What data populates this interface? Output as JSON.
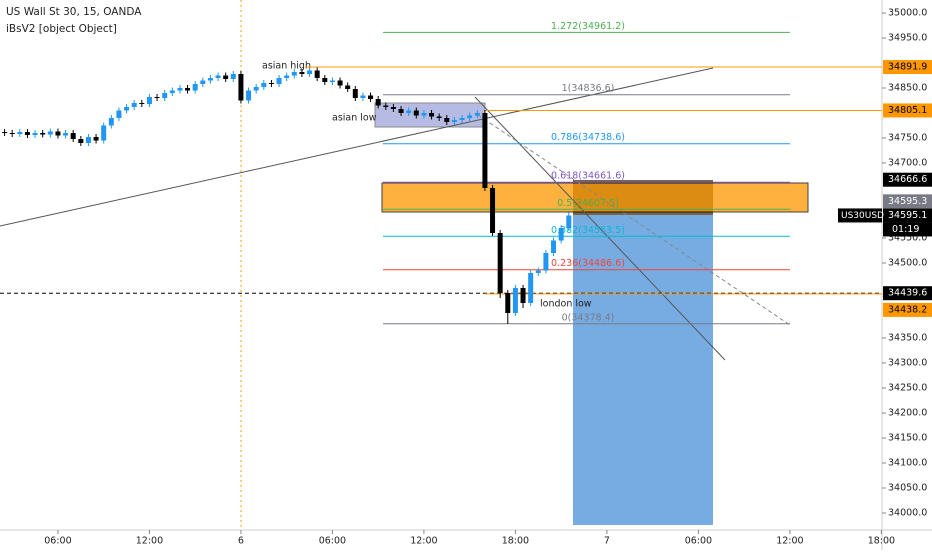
{
  "chart_data": {
    "type": "candlestick",
    "title": "US Wall St 30, 15, OANDA",
    "subtitle": "iBsV2 [object Object]",
    "x": [
      -15.5,
      -15,
      -14.5,
      -14,
      -13.5,
      -13,
      -12.5,
      -12,
      -11.5,
      -11,
      -10.5,
      -10,
      -9.5,
      -9,
      -8.5,
      -8,
      -7.5,
      -7,
      -6.5,
      -6,
      -5.5,
      -5,
      -4.5,
      -4,
      -3.5,
      -3,
      -2.5,
      -2,
      -1.5,
      -1,
      -0.5,
      0,
      0.5,
      1,
      1.5,
      2,
      2.5,
      3,
      3.5,
      4,
      4.5,
      5,
      5.5,
      6,
      6.5,
      7,
      7.5,
      8,
      8.5,
      9,
      9.5,
      10,
      10.5,
      11,
      11.5,
      12,
      12.5,
      13,
      13.5,
      14,
      14.5,
      15,
      15.5,
      16,
      16.5,
      17,
      17.5,
      18,
      18.5,
      19,
      19.5,
      20,
      20.5,
      21,
      21.5
    ],
    "open": [
      34762,
      34760,
      34758,
      34762,
      34756,
      34760,
      34757,
      34763,
      34755,
      34760,
      34748,
      34740,
      34752,
      34745,
      34775,
      34790,
      34805,
      34812,
      34820,
      34818,
      34832,
      34830,
      34840,
      34845,
      34850,
      34845,
      34858,
      34865,
      34870,
      34875,
      34868,
      34878,
      34825,
      34845,
      34852,
      34860,
      34858,
      34870,
      34875,
      34882,
      34878,
      34885,
      34870,
      34862,
      34865,
      34855,
      34848,
      34830,
      34835,
      34828,
      34815,
      34812,
      34808,
      34800,
      34805,
      34795,
      34800,
      34793,
      34790,
      34782,
      34786,
      34790,
      34795,
      34800,
      34650,
      34560,
      34440,
      34400,
      34450,
      34420,
      34480,
      34485,
      34520,
      34545,
      34570
    ],
    "high": [
      34768,
      34766,
      34768,
      34768,
      34766,
      34766,
      34769,
      34769,
      34766,
      34766,
      34754,
      34758,
      34758,
      34781,
      34796,
      34811,
      34818,
      34826,
      34826,
      34838,
      34838,
      34846,
      34851,
      34856,
      34856,
      34864,
      34871,
      34876,
      34881,
      34881,
      34884,
      34884,
      34851,
      34858,
      34866,
      34866,
      34876,
      34881,
      34888,
      34888,
      34891,
      34891,
      34876,
      34871,
      34871,
      34861,
      34854,
      34841,
      34841,
      34834,
      34821,
      34818,
      34814,
      34811,
      34811,
      34806,
      34806,
      34799,
      34796,
      34792,
      34796,
      34801,
      34806,
      34806,
      34656,
      34566,
      34446,
      34456,
      34456,
      34486,
      34491,
      34526,
      34551,
      34576,
      34601
    ],
    "low": [
      34754,
      34752,
      34752,
      34750,
      34750,
      34751,
      34751,
      34749,
      34749,
      34742,
      34734,
      34734,
      34739,
      34739,
      34769,
      34784,
      34799,
      34806,
      34812,
      34812,
      34824,
      34824,
      34834,
      34839,
      34839,
      34839,
      34852,
      34859,
      34864,
      34862,
      34862,
      34819,
      34819,
      34839,
      34846,
      34852,
      34852,
      34864,
      34869,
      34872,
      34872,
      34864,
      34856,
      34856,
      34849,
      34842,
      34824,
      34824,
      34822,
      34809,
      34806,
      34802,
      34794,
      34794,
      34789,
      34789,
      34787,
      34784,
      34776,
      34776,
      34780,
      34784,
      34789,
      34644,
      34554,
      34430,
      34378,
      34394,
      34410,
      34414,
      34474,
      34479,
      34514,
      34539,
      34564
    ],
    "close": [
      34760,
      34758,
      34762,
      34756,
      34760,
      34757,
      34763,
      34755,
      34760,
      34748,
      34740,
      34752,
      34745,
      34775,
      34790,
      34805,
      34812,
      34820,
      34818,
      34832,
      34830,
      34840,
      34845,
      34850,
      34845,
      34858,
      34865,
      34870,
      34875,
      34868,
      34878,
      34825,
      34845,
      34852,
      34860,
      34858,
      34870,
      34875,
      34882,
      34878,
      34885,
      34870,
      34862,
      34865,
      34855,
      34848,
      34830,
      34835,
      34828,
      34815,
      34812,
      34808,
      34800,
      34805,
      34795,
      34800,
      34793,
      34790,
      34782,
      34786,
      34790,
      34795,
      34800,
      34650,
      34560,
      34440,
      34400,
      34450,
      34420,
      34480,
      34485,
      34520,
      34545,
      34570,
      34595
    ],
    "up_color": "#2196f3",
    "down_color": "#000000",
    "xlim": [
      -15.8,
      42.04
    ],
    "ylim": [
      33966,
      35026
    ],
    "xticks": [
      {
        "value": -12,
        "label": "06:00"
      },
      {
        "value": -6,
        "label": "12:00"
      },
      {
        "value": 0,
        "label": "6"
      },
      {
        "value": 6,
        "label": "06:00"
      },
      {
        "value": 12,
        "label": "12:00"
      },
      {
        "value": 18,
        "label": "18:00"
      },
      {
        "value": 24,
        "label": "7"
      },
      {
        "value": 30,
        "label": "06:00"
      },
      {
        "value": 36,
        "label": "12:00"
      },
      {
        "value": 42,
        "label": "18:00"
      }
    ],
    "yticks": [
      {
        "value": 35000,
        "label": "35000.0"
      },
      {
        "value": 34950,
        "label": "34950.0"
      },
      {
        "value": 34850,
        "label": "34850.0"
      },
      {
        "value": 34750,
        "label": "34750.0"
      },
      {
        "value": 34700,
        "label": "34700.0"
      },
      {
        "value": 34550,
        "label": "34550.0"
      },
      {
        "value": 34500,
        "label": "34500.0"
      },
      {
        "value": 34350,
        "label": "34350.0"
      },
      {
        "value": 34300,
        "label": "34300.0"
      },
      {
        "value": 34250,
        "label": "34250.0"
      },
      {
        "value": 34200,
        "label": "34200.0"
      },
      {
        "value": 34150,
        "label": "34150.0"
      },
      {
        "value": 34100,
        "label": "34100.0"
      },
      {
        "value": 34050,
        "label": "34050.0"
      },
      {
        "value": 34000,
        "label": "34000.0"
      }
    ],
    "fib_levels": [
      {
        "value": 34961.2,
        "label": "1.272(34961.2)",
        "color": "#4caf50"
      },
      {
        "value": 34836.6,
        "label": "1(34836.6)",
        "color": "#787b86"
      },
      {
        "value": 34738.6,
        "label": "0.786(34738.6)",
        "color": "#2196f3"
      },
      {
        "value": 34661.6,
        "label": "0.618(34661.6)",
        "color": "#7e57c2"
      },
      {
        "value": 34607.5,
        "label": "0.5(34607.5)",
        "color": "#4caf50"
      },
      {
        "value": 34553.5,
        "label": "0.382(34553.5)",
        "color": "#00bcd4"
      },
      {
        "value": 34486.6,
        "label": "0.236(34486.6)",
        "color": "#f44336"
      },
      {
        "value": 34378.4,
        "label": "0(34378.4)",
        "color": "#787b86"
      }
    ],
    "price_labels": [
      {
        "value": 34891.9,
        "color": "#ff9800"
      },
      {
        "value": 34805.1,
        "color": "#ff9800"
      },
      {
        "value": 34666.6,
        "color": "#000000"
      },
      {
        "value": 34595.3,
        "color": "#787b86"
      },
      {
        "value": 34595.1,
        "color": "#000000"
      },
      {
        "value": 34439.6,
        "color": "#000000"
      },
      {
        "value": 34438.2,
        "color": "#ff9800"
      }
    ],
    "symbol": "US30USD",
    "countdown": "01:19",
    "annotations": [
      "asian high",
      "asian low",
      "london  low"
    ]
  }
}
